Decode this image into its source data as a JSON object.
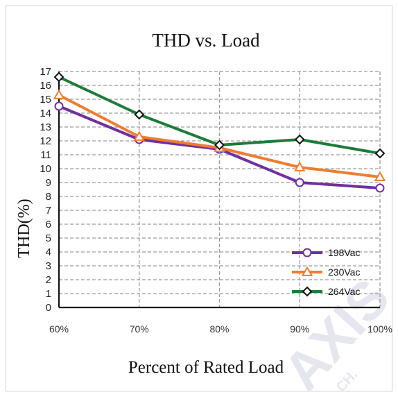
{
  "chart_data": {
    "type": "line",
    "title": "THD vs. Load",
    "xlabel": "Percent of Rated Load",
    "ylabel": "THD(%)",
    "categories": [
      "60%",
      "70%",
      "80%",
      "90%",
      "100%"
    ],
    "ylim": [
      0,
      17
    ],
    "yticks": [
      "0",
      "1",
      "2",
      "3",
      "4",
      "5",
      "6",
      "7",
      "8",
      "9",
      "10",
      "11",
      "12",
      "13",
      "14",
      "15",
      "16",
      "17"
    ],
    "grid": true,
    "legend_position": "bottom-right",
    "series": [
      {
        "name": "198Vac",
        "marker": "circle",
        "color": "#7030a0",
        "values": [
          14.5,
          12.1,
          11.4,
          9.0,
          8.6
        ]
      },
      {
        "name": "230Vac",
        "marker": "triangle",
        "color": "#ed7d31",
        "values": [
          15.3,
          12.3,
          11.5,
          10.1,
          9.4
        ]
      },
      {
        "name": "264Vac",
        "marker": "diamond",
        "color": "#1e7b3a",
        "values": [
          16.6,
          13.9,
          11.7,
          12.1,
          11.1
        ]
      }
    ]
  },
  "watermark": {
    "text": "AXIS",
    "subtext": "CH.",
    "color": "#e6e6ee"
  }
}
